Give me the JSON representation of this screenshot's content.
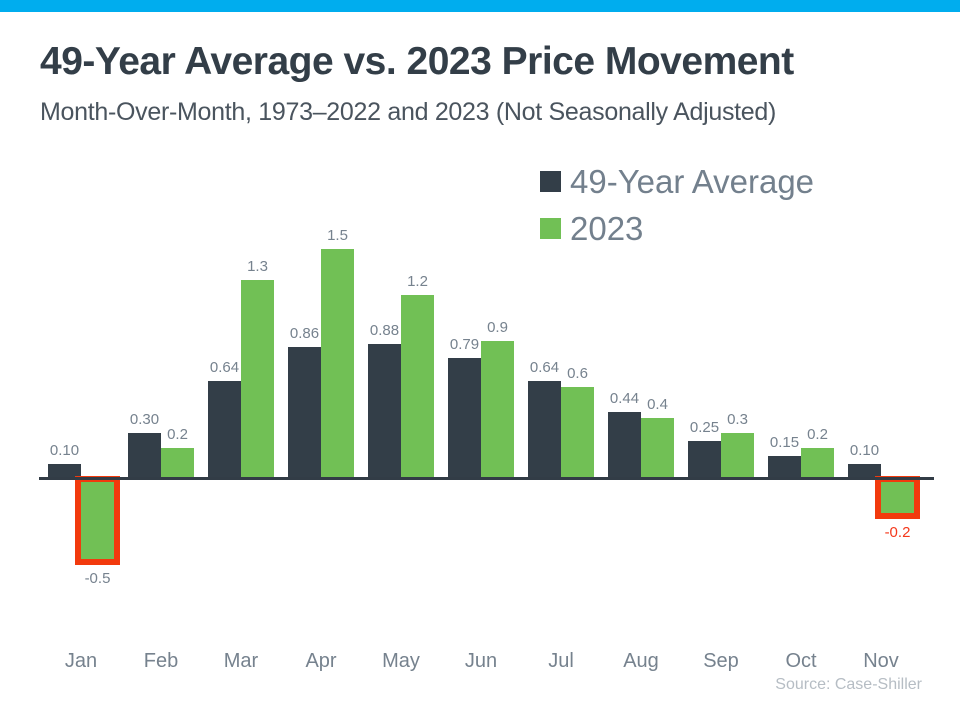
{
  "page": {
    "topbar_color": "#00ADEE",
    "background_color": "#FFFFFF"
  },
  "header": {
    "title": "49-Year Average vs. 2023 Price Movement",
    "subtitle": "Month-Over-Month, 1973–2022 and 2023 (Not Seasonally Adjusted)"
  },
  "legend": {
    "position": "top-right",
    "items": [
      {
        "label": "49-Year Average",
        "color": "#333E48"
      },
      {
        "label": "2023",
        "color": "#71C055"
      }
    ]
  },
  "footer": {
    "source": "Source: Case-Shiller"
  },
  "chart_data": {
    "type": "bar",
    "title": "49-Year Average vs. 2023 Price Movement",
    "subtitle": "Month-Over-Month, 1973–2022 and 2023 (Not Seasonally Adjusted)",
    "categories": [
      "Jan",
      "Feb",
      "Mar",
      "Apr",
      "May",
      "Jun",
      "Jul",
      "Aug",
      "Sep",
      "Oct",
      "Nov"
    ],
    "series": [
      {
        "name": "49-Year Average",
        "color": "#333E48",
        "values": [
          0.1,
          0.3,
          0.64,
          0.86,
          0.88,
          0.79,
          0.64,
          0.44,
          0.25,
          0.15,
          0.1
        ],
        "labels": [
          "0.10",
          "0.30",
          "0.64",
          "0.86",
          "0.88",
          "0.79",
          "0.64",
          "0.44",
          "0.25",
          "0.15",
          "0.10"
        ]
      },
      {
        "name": "2023",
        "color": "#71C055",
        "values": [
          -0.5,
          0.2,
          1.3,
          1.5,
          1.2,
          0.9,
          0.6,
          0.4,
          0.3,
          0.2,
          -0.2
        ],
        "labels": [
          "-0.5",
          "0.2",
          "1.3",
          "1.5",
          "1.2",
          "0.9",
          "0.6",
          "0.4",
          "0.3",
          "0.2",
          "-0.2"
        ],
        "label_overrides": {
          "10": "#F4381B"
        }
      }
    ],
    "highlights": {
      "series": "2023",
      "indices": [
        0,
        10
      ],
      "outline_color": "#F23A0D",
      "note": "negative months outlined in red-orange"
    },
    "value_label_color": "#76828E",
    "axis_color": "#323C46",
    "ylim": [
      -0.6,
      1.6
    ],
    "grid": false,
    "legend_position": "top-right",
    "xlabel": "",
    "ylabel": "",
    "source": "Source: Case-Shiller"
  }
}
